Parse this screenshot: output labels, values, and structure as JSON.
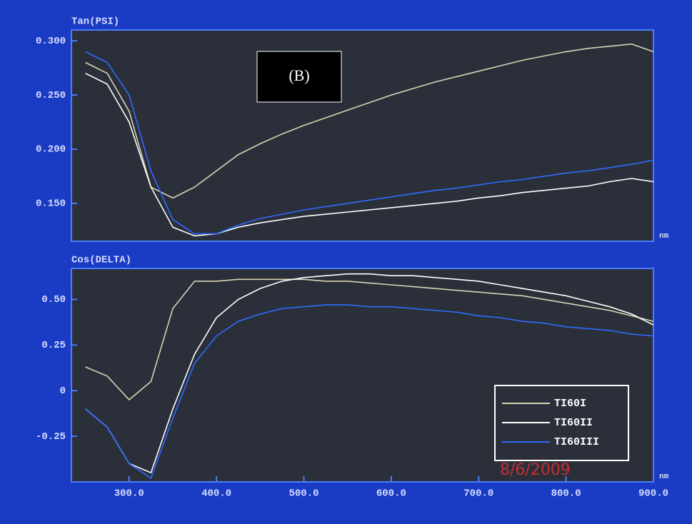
{
  "chart_data": [
    {
      "type": "line",
      "title": "Tan(PSI)",
      "label": "(B)",
      "x_unit": "nm",
      "x": [
        250,
        275,
        300,
        325,
        350,
        375,
        400,
        425,
        450,
        475,
        500,
        525,
        550,
        575,
        600,
        625,
        650,
        675,
        700,
        725,
        750,
        775,
        800,
        825,
        850,
        875,
        900
      ],
      "series": [
        {
          "color": "#d8d4b4",
          "values": [
            0.28,
            0.27,
            0.235,
            0.165,
            0.155,
            0.165,
            0.18,
            0.195,
            0.205,
            0.214,
            0.222,
            0.229,
            0.236,
            0.243,
            0.25,
            0.256,
            0.262,
            0.267,
            0.272,
            0.277,
            0.282,
            0.286,
            0.29,
            0.293,
            0.295,
            0.297,
            0.29
          ]
        },
        {
          "color": "#ffffff",
          "values": [
            0.27,
            0.26,
            0.225,
            0.165,
            0.128,
            0.12,
            0.122,
            0.128,
            0.132,
            0.135,
            0.138,
            0.14,
            0.142,
            0.144,
            0.146,
            0.148,
            0.15,
            0.152,
            0.155,
            0.157,
            0.16,
            0.162,
            0.164,
            0.166,
            0.17,
            0.173,
            0.17
          ]
        },
        {
          "color": "#2f6bff",
          "values": [
            0.29,
            0.28,
            0.25,
            0.18,
            0.135,
            0.122,
            0.122,
            0.13,
            0.136,
            0.14,
            0.144,
            0.147,
            0.15,
            0.153,
            0.156,
            0.159,
            0.162,
            0.164,
            0.167,
            0.17,
            0.172,
            0.175,
            0.178,
            0.18,
            0.183,
            0.186,
            0.19
          ]
        }
      ],
      "xlim": [
        234,
        900
      ],
      "ylim": [
        0.115,
        0.31
      ],
      "yticks": [
        {
          "value": 0.3,
          "label": "0.300"
        },
        {
          "value": 0.25,
          "label": "0.250"
        },
        {
          "value": 0.2,
          "label": "0.200"
        },
        {
          "value": 0.15,
          "label": "0.150"
        }
      ],
      "grid": false
    },
    {
      "type": "line",
      "title": "Cos(DELTA)",
      "x_unit": "nm",
      "annotation": "8/6/2009",
      "x": [
        250,
        275,
        300,
        325,
        350,
        375,
        400,
        425,
        450,
        475,
        500,
        525,
        550,
        575,
        600,
        625,
        650,
        675,
        700,
        725,
        750,
        775,
        800,
        825,
        850,
        875,
        900
      ],
      "series": [
        {
          "name": "TI60I",
          "color": "#d8d4b4",
          "values": [
            0.13,
            0.08,
            -0.05,
            0.05,
            0.45,
            0.6,
            0.6,
            0.61,
            0.61,
            0.61,
            0.61,
            0.6,
            0.6,
            0.59,
            0.58,
            0.57,
            0.56,
            0.55,
            0.54,
            0.53,
            0.52,
            0.5,
            0.48,
            0.46,
            0.44,
            0.41,
            0.38
          ]
        },
        {
          "name": "TI60II",
          "color": "#ffffff",
          "values": [
            -0.1,
            -0.2,
            -0.4,
            -0.45,
            -0.1,
            0.2,
            0.4,
            0.5,
            0.56,
            0.6,
            0.62,
            0.63,
            0.64,
            0.64,
            0.63,
            0.63,
            0.62,
            0.61,
            0.6,
            0.58,
            0.56,
            0.54,
            0.52,
            0.49,
            0.46,
            0.42,
            0.36
          ]
        },
        {
          "name": "TI60III",
          "color": "#2f6bff",
          "values": [
            -0.1,
            -0.2,
            -0.4,
            -0.48,
            -0.15,
            0.15,
            0.3,
            0.38,
            0.42,
            0.45,
            0.46,
            0.47,
            0.47,
            0.46,
            0.46,
            0.45,
            0.44,
            0.43,
            0.41,
            0.4,
            0.38,
            0.37,
            0.35,
            0.34,
            0.33,
            0.31,
            0.3
          ]
        }
      ],
      "xlim": [
        234,
        900
      ],
      "ylim": [
        -0.5,
        0.67
      ],
      "xticks": [
        {
          "value": 300,
          "label": "300.0"
        },
        {
          "value": 400,
          "label": "400.0"
        },
        {
          "value": 500,
          "label": "500.0"
        },
        {
          "value": 600,
          "label": "600.0"
        },
        {
          "value": 700,
          "label": "700.0"
        },
        {
          "value": 800,
          "label": "800.0"
        },
        {
          "value": 900,
          "label": "900.0"
        }
      ],
      "yticks": [
        {
          "value": 0.5,
          "label": "0.50"
        },
        0.25,
        0,
        -0.25
      ],
      "grid": false,
      "legend": "lower-right"
    }
  ]
}
